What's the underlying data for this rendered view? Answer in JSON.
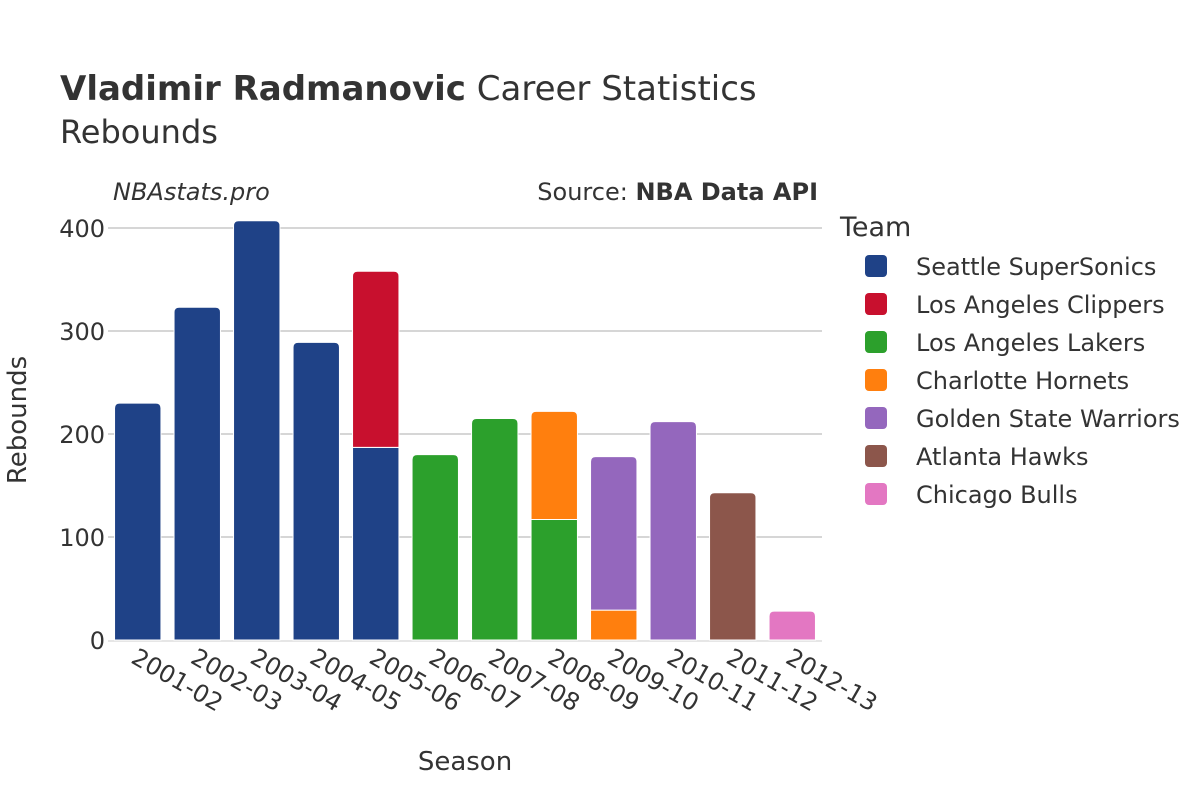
{
  "header": {
    "title_bold": "Vladimir Radmanovic",
    "title_rest": " Career Statistics",
    "subtitle": "Rebounds"
  },
  "watermark": "NBAstats.pro",
  "source": {
    "prefix": "Source: ",
    "name": "NBA Data API"
  },
  "legend": {
    "title": "Team"
  },
  "chart_data": {
    "type": "bar",
    "stacked": true,
    "xlabel": "Season",
    "ylabel": "Rebounds",
    "ylim": [
      0,
      420
    ],
    "yticks": [
      0,
      100,
      200,
      300,
      400
    ],
    "grid": true,
    "legend_position": "right",
    "categories": [
      "2001-02",
      "2002-03",
      "2003-04",
      "2004-05",
      "2005-06",
      "2006-07",
      "2007-08",
      "2008-09",
      "2009-10",
      "2010-11",
      "2011-12",
      "2012-13"
    ],
    "series": [
      {
        "name": "Seattle SuperSonics",
        "color": "#1f4287",
        "values": [
          230,
          323,
          407,
          289,
          187,
          null,
          null,
          null,
          null,
          null,
          null,
          null
        ]
      },
      {
        "name": "Los Angeles Clippers",
        "color": "#c8102e",
        "values": [
          null,
          null,
          null,
          null,
          171,
          null,
          null,
          null,
          null,
          null,
          null,
          null
        ]
      },
      {
        "name": "Los Angeles Lakers",
        "color": "#2ca02c",
        "values": [
          null,
          null,
          null,
          null,
          null,
          180,
          215,
          117,
          null,
          null,
          null,
          null
        ]
      },
      {
        "name": "Charlotte Hornets",
        "color": "#ff7f0e",
        "values": [
          null,
          null,
          null,
          null,
          null,
          null,
          null,
          105,
          29,
          null,
          null,
          null
        ]
      },
      {
        "name": "Golden State Warriors",
        "color": "#9467bd",
        "values": [
          null,
          null,
          null,
          null,
          null,
          null,
          null,
          null,
          149,
          212,
          null,
          null
        ]
      },
      {
        "name": "Atlanta Hawks",
        "color": "#8c564b",
        "values": [
          null,
          null,
          null,
          null,
          null,
          null,
          null,
          null,
          null,
          null,
          143,
          null
        ]
      },
      {
        "name": "Chicago Bulls",
        "color": "#e377c2",
        "values": [
          null,
          null,
          null,
          null,
          null,
          null,
          null,
          null,
          null,
          null,
          null,
          28
        ]
      }
    ]
  }
}
